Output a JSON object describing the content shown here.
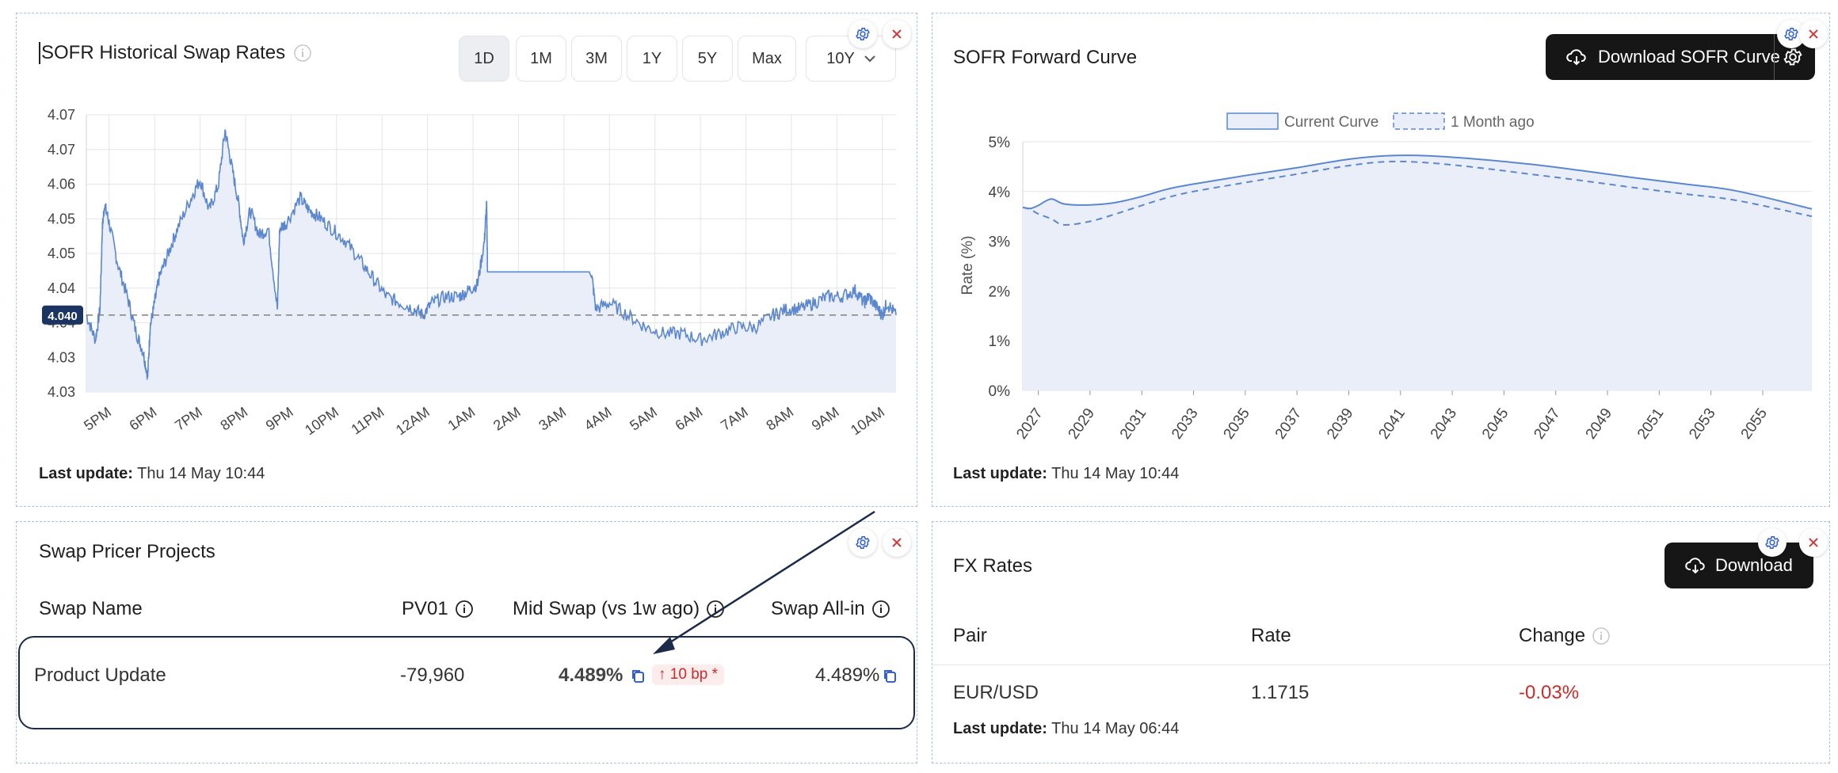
{
  "historical": {
    "title": "SOFR Historical Swap Rates",
    "ranges": [
      "1D",
      "1M",
      "3M",
      "1Y",
      "5Y",
      "Max"
    ],
    "active_range": "1D",
    "tenor_select": "10Y",
    "current_value_badge": "4.040",
    "last_update_label": "Last update:",
    "last_update_value": "Thu 14 May 10:44"
  },
  "forward": {
    "title": "SOFR Forward Curve",
    "download_label": "Download SOFR Curve",
    "last_update_label": "Last update:",
    "last_update_value": "Thu 14 May 10:44"
  },
  "swap_pricer": {
    "title": "Swap Pricer Projects",
    "columns": [
      "Swap Name",
      "PV01",
      "Mid Swap (vs 1w ago)",
      "Swap All-in"
    ],
    "row": {
      "name": "Product Update",
      "pv01": "-79,960",
      "mid_swap": "4.489%",
      "change_badge": "10 bp *",
      "all_in": "4.489%"
    }
  },
  "fx": {
    "title": "FX Rates",
    "download_label": "Download",
    "columns": [
      "Pair",
      "Rate",
      "Change"
    ],
    "rows": [
      {
        "pair": "EUR/USD",
        "rate": "1.1715",
        "change": "-0.03%"
      }
    ],
    "last_update_label": "Last update:",
    "last_update_value": "Thu 14 May 06:44"
  },
  "colors": {
    "line": "#5b87cf",
    "fill": "#e9eef9",
    "grid": "#e3e5e9",
    "negative": "#cc2b2b",
    "dark": "#161616",
    "badge_bg": "#1c3461"
  },
  "chart_data": [
    {
      "type": "line",
      "title": "SOFR Historical Swap Rates",
      "ylabel": "",
      "xlabel": "",
      "y_ticks": [
        "4.03",
        "4.03",
        "4.04",
        "4.04",
        "4.05",
        "4.05",
        "4.06",
        "4.07",
        "4.07"
      ],
      "ylim": [
        4.0275,
        4.0725
      ],
      "x_ticks": [
        "5PM",
        "6PM",
        "7PM",
        "8PM",
        "9PM",
        "10PM",
        "11PM",
        "12AM",
        "1AM",
        "2AM",
        "3AM",
        "4AM",
        "5AM",
        "6AM",
        "7AM",
        "8AM",
        "9AM",
        "10AM"
      ],
      "reference_line": 4.04,
      "series": [
        {
          "x": [
            16.5,
            16.7,
            16.8,
            16.85,
            16.9,
            17.0,
            17.2,
            17.4,
            17.6,
            17.75,
            17.85,
            17.9,
            18.0,
            18.1,
            18.3,
            18.5,
            18.8,
            19.0,
            19.2,
            19.4,
            19.55,
            19.7,
            19.85,
            19.95,
            20.1,
            20.3,
            20.5,
            20.7,
            20.75,
            20.9,
            21.2,
            21.4,
            21.6,
            21.9,
            22.2,
            22.5,
            22.8,
            23.1,
            23.4,
            23.7,
            23.9,
            24.1,
            24.4,
            24.7,
            24.9,
            25.1,
            25.25,
            25.3,
            25.32,
            25.5,
            26.0,
            26.5,
            27.0,
            27.6,
            27.7,
            28.0,
            28.4,
            28.8,
            29.2,
            29.6,
            30.0,
            30.4,
            30.8,
            31.2,
            31.6,
            31.9,
            32.2,
            32.5,
            32.8,
            33.1,
            33.4,
            33.6,
            33.7,
            33.9,
            34.0,
            34.1,
            34.3
          ],
          "y": [
            4.04,
            4.036,
            4.041,
            4.054,
            4.058,
            4.055,
            4.048,
            4.043,
            4.037,
            4.034,
            4.03,
            4.038,
            4.042,
            4.046,
            4.05,
            4.054,
            4.059,
            4.062,
            4.057,
            4.061,
            4.07,
            4.064,
            4.058,
            4.052,
            4.057,
            4.053,
            4.054,
            4.041,
            4.054,
            4.055,
            4.059,
            4.057,
            4.056,
            4.054,
            4.052,
            4.049,
            4.046,
            4.043,
            4.042,
            4.041,
            4.04,
            4.042,
            4.043,
            4.043,
            4.044,
            4.045,
            4.052,
            4.058,
            4.047,
            4.047,
            4.047,
            4.047,
            4.047,
            4.047,
            4.041,
            4.042,
            4.04,
            4.038,
            4.037,
            4.037,
            4.036,
            4.037,
            4.038,
            4.038,
            4.04,
            4.041,
            4.041,
            4.042,
            4.043,
            4.043,
            4.044,
            4.042,
            4.043,
            4.041,
            4.04,
            4.042,
            4.04
          ],
          "name": ""
        }
      ]
    },
    {
      "type": "area",
      "title": "SOFR Forward Curve",
      "ylabel": "Rate (%)",
      "xlabel": "",
      "ylim": [
        0,
        5
      ],
      "y_ticks": [
        "0%",
        "1%",
        "2%",
        "3%",
        "4%",
        "5%"
      ],
      "x_ticks": [
        "2027",
        "2029",
        "2031",
        "2033",
        "2035",
        "2037",
        "2039",
        "2041",
        "2043",
        "2045",
        "2047",
        "2049",
        "2051",
        "2053",
        "2055"
      ],
      "xlim": [
        2026.4,
        2056.9
      ],
      "legend": "top-center",
      "series": [
        {
          "name": "Current Curve",
          "style": "solid",
          "x": [
            2026.4,
            2026.7,
            2027.0,
            2027.5,
            2028.0,
            2029.0,
            2030.0,
            2031.0,
            2032.0,
            2033.0,
            2035.0,
            2037.0,
            2039.0,
            2040.5,
            2042.0,
            2044.0,
            2046.0,
            2048.0,
            2050.0,
            2052.0,
            2054.0,
            2056.9
          ],
          "y": [
            3.68,
            3.66,
            3.72,
            3.85,
            3.75,
            3.73,
            3.78,
            3.9,
            4.05,
            4.15,
            4.32,
            4.48,
            4.65,
            4.72,
            4.72,
            4.65,
            4.55,
            4.42,
            4.28,
            4.15,
            4.01,
            3.65
          ]
        },
        {
          "name": "1 Month ago",
          "style": "dashed",
          "x": [
            2026.4,
            2026.7,
            2027.0,
            2027.5,
            2028.0,
            2029.0,
            2030.0,
            2031.0,
            2032.0,
            2033.0,
            2035.0,
            2037.0,
            2039.0,
            2040.5,
            2042.0,
            2044.0,
            2046.0,
            2048.0,
            2050.0,
            2052.0,
            2054.0,
            2056.9
          ],
          "y": [
            3.68,
            3.64,
            3.55,
            3.45,
            3.33,
            3.4,
            3.55,
            3.72,
            3.88,
            4.0,
            4.18,
            4.35,
            4.52,
            4.6,
            4.58,
            4.48,
            4.35,
            4.22,
            4.08,
            3.95,
            3.82,
            3.5
          ]
        }
      ]
    }
  ]
}
